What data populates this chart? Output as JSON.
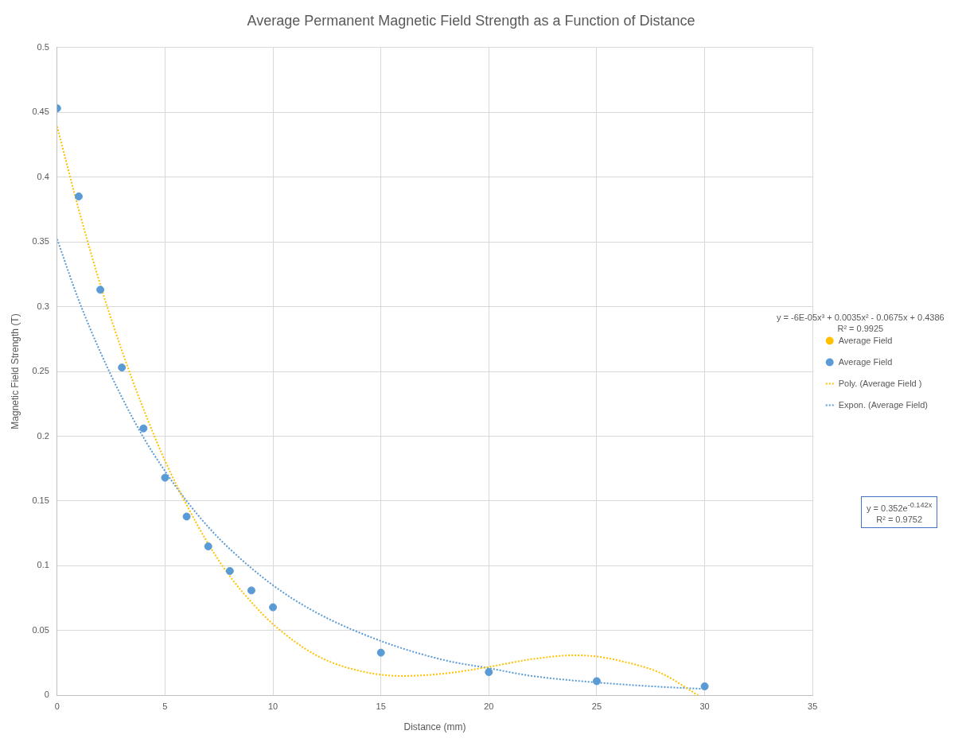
{
  "chart_data": {
    "type": "scatter",
    "title": "Average Permanent Magnetic Field Strength as a Function of Distance",
    "xlabel": "Distance (mm)",
    "ylabel": "Magnetic Field Strength (T)",
    "x": [
      0,
      1,
      2,
      3,
      4,
      5,
      6,
      7,
      8,
      9,
      10,
      15,
      20,
      25,
      30
    ],
    "series": [
      {
        "name": "Average Field",
        "color": "#ffc000",
        "type": "scatter",
        "marker": "circle",
        "values": [
          null,
          null,
          null,
          null,
          null,
          null,
          null,
          null,
          null,
          null,
          null,
          null,
          null,
          null,
          null
        ]
      },
      {
        "name": "Average Field",
        "color": "#5b9bd5",
        "type": "scatter",
        "marker": "circle",
        "values": [
          0.453,
          0.385,
          0.313,
          0.253,
          0.206,
          0.168,
          0.138,
          0.115,
          0.096,
          0.081,
          0.068,
          0.033,
          0.018,
          0.011,
          0.007
        ]
      },
      {
        "name": "Poly. (Average Field )",
        "color": "#ffc000",
        "type": "line",
        "line_style": "dotted",
        "marker": "none",
        "x": [
          0,
          1,
          2,
          3,
          4,
          5,
          6,
          7,
          8,
          9,
          10,
          12,
          14,
          16,
          18,
          20,
          22,
          24,
          25,
          26,
          28,
          29.7
        ],
        "values": [
          0.439,
          0.375,
          0.317,
          0.266,
          0.221,
          0.181,
          0.147,
          0.117,
          0.092,
          0.072,
          0.055,
          0.031,
          0.019,
          0.015,
          0.017,
          0.022,
          0.028,
          0.031,
          0.03,
          0.027,
          0.017,
          0
        ]
      },
      {
        "name": "Expon. (Average Field)",
        "color": "#5b9bd5",
        "type": "line",
        "line_style": "dotted",
        "marker": "none",
        "x": [
          0,
          1,
          2,
          3,
          4,
          5,
          6,
          7,
          8,
          10,
          12,
          15,
          18,
          20,
          22,
          25,
          28,
          30
        ],
        "values": [
          0.352,
          0.305,
          0.265,
          0.23,
          0.199,
          0.173,
          0.15,
          0.13,
          0.113,
          0.085,
          0.064,
          0.042,
          0.027,
          0.021,
          0.015,
          0.01,
          0.0066,
          0.005
        ]
      }
    ],
    "annotations": [
      "y = -6E-05x³ + 0.0035x² - 0.0675x + 0.4386",
      "R² = 0.9925",
      "y = 0.352e$^{-0.142x}$",
      "R² = 0.9752"
    ],
    "xlim": [
      0,
      35
    ],
    "xticks": [
      0,
      5,
      10,
      15,
      20,
      25,
      30,
      35
    ],
    "ylim": [
      0,
      0.5
    ],
    "yticks": [
      0,
      0.05,
      0.1,
      0.15,
      0.2,
      0.25,
      0.3,
      0.35,
      0.4,
      0.45,
      0.5
    ],
    "grid": true,
    "legend": "right"
  }
}
